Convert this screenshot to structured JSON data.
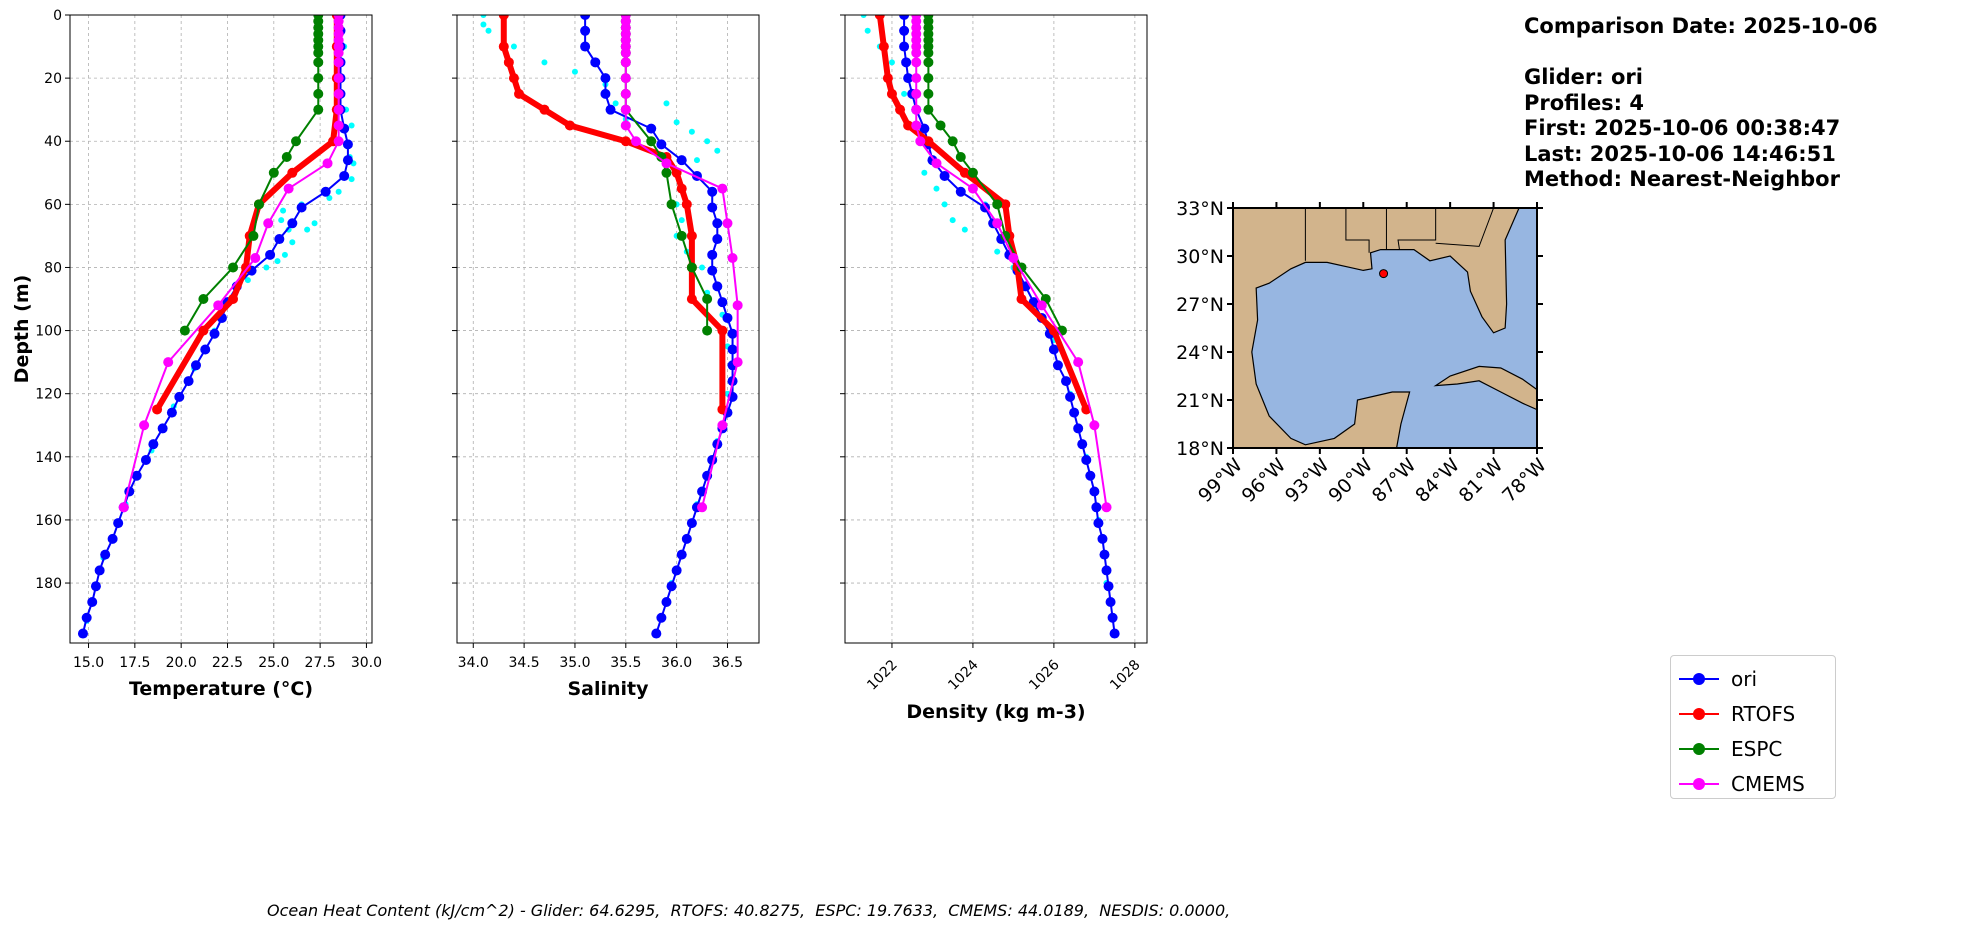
{
  "info": {
    "comparison_date": "Comparison Date: 2025-10-06",
    "glider": "Glider: ori",
    "profiles": "Profiles: 4",
    "first": "First: 2025-10-06 00:38:47",
    "last": "Last: 2025-10-06 14:46:51",
    "method": "Method: Nearest-Neighbor"
  },
  "footer": "Ocean Heat Content (kJ/cm^2) - Glider: 64.6295,  RTOFS: 40.8275,  ESPC: 19.7633,  CMEMS: 44.0189,  NESDIS: 0.0000,",
  "legend": [
    {
      "label": "ori",
      "color": "#0000ff"
    },
    {
      "label": "RTOFS",
      "color": "#ff0000"
    },
    {
      "label": "ESPC",
      "color": "#008000"
    },
    {
      "label": "CMEMS",
      "color": "#ff00ff"
    }
  ],
  "map": {
    "lat_ticks": [
      "33°N",
      "30°N",
      "27°N",
      "24°N",
      "21°N",
      "18°N"
    ],
    "lon_ticks": [
      "99°W",
      "96°W",
      "93°W",
      "90°W",
      "87°W",
      "84°W",
      "81°W",
      "78°W"
    ],
    "lon_range": [
      -99,
      -78
    ],
    "lat_range": [
      18,
      33
    ],
    "glider_position": {
      "lon": -88.6,
      "lat": 28.9
    },
    "land_color": "#d2b48c",
    "ocean_color": "#97b6e1"
  },
  "chart_data": [
    {
      "type": "line",
      "xlabel": "Temperature (°C)",
      "ylabel": "Depth (m)",
      "xlim": [
        14.0,
        30.3
      ],
      "ylim": [
        199,
        0
      ],
      "xticks": [
        15.0,
        17.5,
        20.0,
        22.5,
        25.0,
        27.5,
        30.0
      ],
      "xtick_labels": [
        "15.0",
        "17.5",
        "20.0",
        "22.5",
        "25.0",
        "27.5",
        "30.0"
      ],
      "yticks": [
        0,
        20,
        40,
        60,
        80,
        100,
        120,
        140,
        160,
        180
      ],
      "ytick_labels": [
        "0",
        "20",
        "40",
        "60",
        "80",
        "100",
        "120",
        "140",
        "160",
        "180"
      ],
      "grid": true,
      "glider_raw": [
        [
          28.5,
          2
        ],
        [
          28.8,
          10
        ],
        [
          28.7,
          20
        ],
        [
          28.9,
          30
        ],
        [
          29.2,
          35
        ],
        [
          29.1,
          45
        ],
        [
          29.3,
          47
        ],
        [
          29.2,
          52
        ],
        [
          28.5,
          56
        ],
        [
          28.0,
          58
        ],
        [
          26.5,
          60
        ],
        [
          25.5,
          62
        ],
        [
          25.4,
          65
        ],
        [
          27.2,
          66
        ],
        [
          25.8,
          68
        ],
        [
          26.8,
          68
        ],
        [
          26.0,
          72
        ],
        [
          25.6,
          76
        ],
        [
          25.2,
          78
        ],
        [
          24.6,
          80
        ],
        [
          23.6,
          84
        ],
        [
          22.8,
          90
        ],
        [
          21.8,
          100
        ],
        [
          20.7,
          112
        ],
        [
          19.6,
          124
        ],
        [
          18.4,
          138
        ],
        [
          17.0,
          155
        ],
        [
          15.8,
          172
        ],
        [
          14.9,
          192
        ]
      ],
      "series": [
        {
          "name": "ori",
          "depth": [
            0,
            5,
            10,
            15,
            20,
            25,
            30,
            36,
            41,
            46,
            51,
            56,
            61,
            66,
            71,
            76,
            81,
            86,
            91,
            96,
            101,
            106,
            111,
            116,
            121,
            126,
            131,
            136,
            141,
            146,
            151,
            156,
            161,
            166,
            171,
            176,
            181,
            186,
            191,
            196
          ],
          "values": [
            28.6,
            28.6,
            28.6,
            28.6,
            28.6,
            28.6,
            28.6,
            28.8,
            29.0,
            29.0,
            28.8,
            27.8,
            26.5,
            26.0,
            25.3,
            24.8,
            23.8,
            23.0,
            22.5,
            22.2,
            21.8,
            21.3,
            20.8,
            20.4,
            19.9,
            19.5,
            19.0,
            18.5,
            18.1,
            17.6,
            17.2,
            16.9,
            16.6,
            16.3,
            15.9,
            15.6,
            15.4,
            15.2,
            14.9,
            14.7
          ]
        },
        {
          "name": "RTOFS",
          "depth": [
            0,
            10,
            20,
            30,
            40,
            50,
            60,
            70,
            80,
            90,
            100,
            125
          ],
          "values": [
            28.4,
            28.4,
            28.4,
            28.4,
            28.2,
            26.0,
            24.2,
            23.7,
            23.5,
            22.8,
            21.2,
            18.7
          ]
        },
        {
          "name": "ESPC",
          "depth": [
            0,
            2,
            4,
            6,
            8,
            10,
            12,
            15,
            20,
            25,
            30,
            40,
            45,
            50,
            60,
            70,
            80,
            90,
            100
          ],
          "values": [
            27.4,
            27.4,
            27.4,
            27.4,
            27.4,
            27.4,
            27.4,
            27.4,
            27.4,
            27.4,
            27.4,
            26.2,
            25.7,
            25.0,
            24.2,
            23.9,
            22.8,
            21.2,
            20.2
          ]
        },
        {
          "name": "CMEMS",
          "depth": [
            0,
            2,
            4,
            6,
            8,
            10,
            12,
            15,
            20,
            25,
            30,
            35,
            40,
            47,
            55,
            66,
            77,
            92,
            110,
            130,
            156
          ],
          "values": [
            28.5,
            28.5,
            28.5,
            28.5,
            28.5,
            28.5,
            28.5,
            28.5,
            28.5,
            28.5,
            28.5,
            28.5,
            28.5,
            27.9,
            25.8,
            24.7,
            24.0,
            22.0,
            19.3,
            18.0,
            16.9
          ]
        }
      ]
    },
    {
      "type": "line",
      "xlabel": "Salinity",
      "xlim": [
        33.84,
        36.81
      ],
      "ylim": [
        199,
        0
      ],
      "xticks": [
        34.0,
        34.5,
        35.0,
        35.5,
        36.0,
        36.5
      ],
      "xtick_labels": [
        "34.0",
        "34.5",
        "35.0",
        "35.5",
        "36.0",
        "36.5"
      ],
      "yticks": [
        0,
        20,
        40,
        60,
        80,
        100,
        120,
        140,
        160,
        180
      ],
      "grid": true,
      "glider_raw": [
        [
          34.1,
          0
        ],
        [
          34.1,
          3
        ],
        [
          34.15,
          5
        ],
        [
          34.4,
          10
        ],
        [
          34.7,
          15
        ],
        [
          35.0,
          18
        ],
        [
          35.3,
          22
        ],
        [
          35.4,
          28
        ],
        [
          35.5,
          33
        ],
        [
          35.9,
          28
        ],
        [
          36.0,
          34
        ],
        [
          36.15,
          37
        ],
        [
          36.3,
          40
        ],
        [
          36.4,
          43
        ],
        [
          36.2,
          46
        ],
        [
          36.05,
          55
        ],
        [
          36.0,
          60
        ],
        [
          36.05,
          65
        ],
        [
          36.0,
          70
        ],
        [
          36.1,
          75
        ],
        [
          36.25,
          80
        ],
        [
          36.3,
          88
        ],
        [
          36.45,
          95
        ],
        [
          36.5,
          105
        ],
        [
          36.5,
          120
        ],
        [
          36.4,
          135
        ],
        [
          36.2,
          155
        ],
        [
          35.95,
          180
        ],
        [
          35.8,
          196
        ]
      ],
      "series": [
        {
          "name": "ori",
          "depth": [
            0,
            5,
            10,
            15,
            20,
            25,
            30,
            36,
            41,
            46,
            51,
            56,
            61,
            66,
            71,
            76,
            81,
            86,
            91,
            96,
            101,
            106,
            111,
            116,
            121,
            126,
            131,
            136,
            141,
            146,
            151,
            156,
            161,
            166,
            171,
            176,
            181,
            186,
            191,
            196
          ],
          "values": [
            35.1,
            35.1,
            35.1,
            35.2,
            35.3,
            35.3,
            35.35,
            35.75,
            35.85,
            36.05,
            36.2,
            36.35,
            36.35,
            36.4,
            36.4,
            36.35,
            36.35,
            36.4,
            36.45,
            36.5,
            36.55,
            36.55,
            36.55,
            36.55,
            36.55,
            36.5,
            36.45,
            36.4,
            36.35,
            36.3,
            36.25,
            36.2,
            36.15,
            36.1,
            36.05,
            36.0,
            35.95,
            35.9,
            35.85,
            35.8
          ]
        },
        {
          "name": "RTOFS",
          "depth": [
            0,
            10,
            15,
            20,
            25,
            30,
            35,
            40,
            45,
            50,
            55,
            60,
            70,
            80,
            90,
            100,
            125
          ],
          "values": [
            34.3,
            34.3,
            34.35,
            34.4,
            34.45,
            34.7,
            34.95,
            35.5,
            35.9,
            36.0,
            36.05,
            36.1,
            36.15,
            36.15,
            36.15,
            36.45,
            36.45
          ]
        },
        {
          "name": "ESPC",
          "depth": [
            0,
            2,
            4,
            6,
            8,
            10,
            12,
            15,
            20,
            25,
            30,
            40,
            45,
            50,
            60,
            70,
            80,
            90,
            100
          ],
          "values": [
            35.5,
            35.5,
            35.5,
            35.5,
            35.5,
            35.5,
            35.5,
            35.5,
            35.5,
            35.5,
            35.5,
            35.75,
            35.85,
            35.9,
            35.95,
            36.05,
            36.15,
            36.3,
            36.3
          ]
        },
        {
          "name": "CMEMS",
          "depth": [
            0,
            2,
            4,
            6,
            8,
            10,
            12,
            15,
            20,
            25,
            30,
            35,
            40,
            47,
            55,
            66,
            77,
            92,
            110,
            130,
            156
          ],
          "values": [
            35.5,
            35.5,
            35.5,
            35.5,
            35.5,
            35.5,
            35.5,
            35.5,
            35.5,
            35.5,
            35.5,
            35.5,
            35.6,
            35.9,
            36.45,
            36.5,
            36.55,
            36.6,
            36.6,
            36.45,
            36.25
          ]
        }
      ]
    },
    {
      "type": "line",
      "xlabel": "Density (kg m-3)",
      "xlim": [
        1020.84,
        1028.3
      ],
      "ylim": [
        199,
        0
      ],
      "xticks": [
        1022,
        1024,
        1026,
        1028
      ],
      "xtick_labels": [
        "1022",
        "1024",
        "1026",
        "1028"
      ],
      "yticks": [
        0,
        20,
        40,
        60,
        80,
        100,
        120,
        140,
        160,
        180
      ],
      "grid": true,
      "glider_raw": [
        [
          1021.3,
          0
        ],
        [
          1021.4,
          5
        ],
        [
          1021.7,
          10
        ],
        [
          1022.0,
          15
        ],
        [
          1022.3,
          25
        ],
        [
          1022.5,
          35
        ],
        [
          1022.8,
          50
        ],
        [
          1023.1,
          55
        ],
        [
          1023.3,
          60
        ],
        [
          1023.5,
          65
        ],
        [
          1023.8,
          68
        ],
        [
          1024.3,
          60
        ],
        [
          1024.6,
          75
        ],
        [
          1025.0,
          80
        ],
        [
          1025.5,
          92
        ],
        [
          1026.0,
          103
        ],
        [
          1026.4,
          120
        ],
        [
          1026.8,
          140
        ],
        [
          1027.1,
          160
        ],
        [
          1027.3,
          180
        ],
        [
          1027.5,
          196
        ]
      ],
      "series": [
        {
          "name": "ori",
          "depth": [
            0,
            5,
            10,
            15,
            20,
            25,
            30,
            36,
            41,
            46,
            51,
            56,
            61,
            66,
            71,
            76,
            81,
            86,
            91,
            96,
            101,
            106,
            111,
            116,
            121,
            126,
            131,
            136,
            141,
            146,
            151,
            156,
            161,
            166,
            171,
            176,
            181,
            186,
            191,
            196
          ],
          "values": [
            1022.3,
            1022.3,
            1022.3,
            1022.35,
            1022.4,
            1022.5,
            1022.6,
            1022.8,
            1022.9,
            1023.0,
            1023.3,
            1023.7,
            1024.3,
            1024.5,
            1024.7,
            1024.9,
            1025.1,
            1025.3,
            1025.5,
            1025.7,
            1025.9,
            1026.0,
            1026.1,
            1026.3,
            1026.4,
            1026.5,
            1026.6,
            1026.7,
            1026.8,
            1026.9,
            1027.0,
            1027.05,
            1027.1,
            1027.2,
            1027.25,
            1027.3,
            1027.35,
            1027.4,
            1027.45,
            1027.5
          ]
        },
        {
          "name": "RTOFS",
          "depth": [
            0,
            10,
            20,
            25,
            30,
            35,
            40,
            50,
            60,
            70,
            80,
            90,
            100,
            125
          ],
          "values": [
            1021.7,
            1021.8,
            1021.9,
            1022.0,
            1022.2,
            1022.4,
            1022.9,
            1023.8,
            1024.8,
            1024.9,
            1025.1,
            1025.2,
            1026.0,
            1026.8
          ]
        },
        {
          "name": "ESPC",
          "depth": [
            0,
            2,
            4,
            6,
            8,
            10,
            12,
            15,
            20,
            25,
            30,
            35,
            40,
            45,
            50,
            60,
            70,
            80,
            90,
            100
          ],
          "values": [
            1022.9,
            1022.9,
            1022.9,
            1022.9,
            1022.9,
            1022.9,
            1022.9,
            1022.9,
            1022.9,
            1022.9,
            1022.9,
            1023.2,
            1023.5,
            1023.7,
            1024.0,
            1024.6,
            1024.8,
            1025.2,
            1025.8,
            1026.2
          ]
        },
        {
          "name": "CMEMS",
          "depth": [
            0,
            2,
            4,
            6,
            8,
            10,
            12,
            15,
            20,
            25,
            30,
            35,
            40,
            47,
            55,
            66,
            77,
            92,
            110,
            130,
            156
          ],
          "values": [
            1022.6,
            1022.6,
            1022.6,
            1022.6,
            1022.6,
            1022.6,
            1022.6,
            1022.6,
            1022.6,
            1022.6,
            1022.6,
            1022.6,
            1022.7,
            1023.1,
            1024.0,
            1024.6,
            1025.0,
            1025.7,
            1026.6,
            1027.0,
            1027.3
          ]
        }
      ]
    }
  ],
  "colors": {
    "ori": "#0000ff",
    "RTOFS": "#ff0000",
    "ESPC": "#008000",
    "CMEMS": "#ff00ff",
    "glider_raw": "#00ffff",
    "grid": "#b0b0b0"
  }
}
